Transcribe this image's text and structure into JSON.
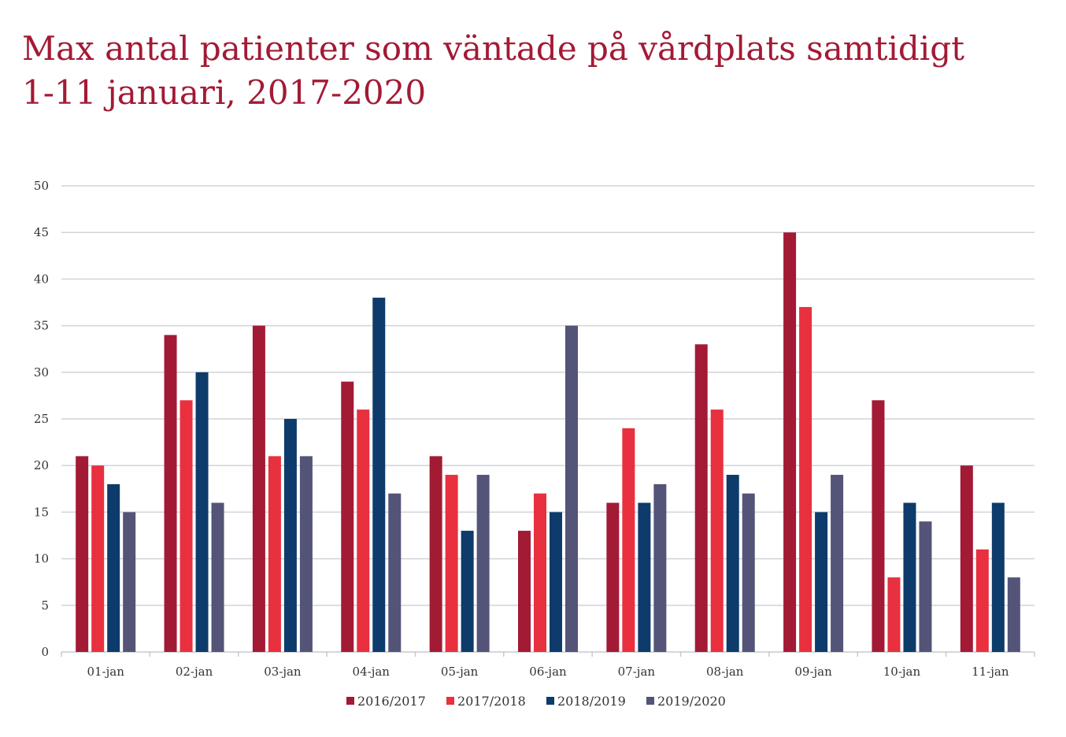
{
  "title": {
    "line1": "Max antal patienter som väntade på vårdplats samtidigt",
    "line2": "1-11 januari, 2017-2020"
  },
  "chart_data": {
    "type": "bar",
    "title": "Max antal patienter som väntade på vårdplats samtidigt 1-11 januari, 2017-2020",
    "xlabel": "",
    "ylabel": "",
    "ylim": [
      0,
      50
    ],
    "yticks": [
      0,
      5,
      10,
      15,
      20,
      25,
      30,
      35,
      40,
      45,
      50
    ],
    "grid": true,
    "legend_position": "bottom",
    "categories": [
      "01-jan",
      "02-jan",
      "03-jan",
      "04-jan",
      "05-jan",
      "06-jan",
      "07-jan",
      "08-jan",
      "09-jan",
      "10-jan",
      "11-jan"
    ],
    "series": [
      {
        "name": "2016/2017",
        "color": "#a31a35",
        "values": [
          21,
          34,
          35,
          29,
          21,
          13,
          16,
          33,
          45,
          27,
          20
        ]
      },
      {
        "name": "2017/2018",
        "color": "#e8303f",
        "values": [
          20,
          27,
          21,
          26,
          19,
          17,
          24,
          26,
          37,
          8,
          11
        ]
      },
      {
        "name": "2018/2019",
        "color": "#0d3b6b",
        "values": [
          18,
          30,
          25,
          38,
          13,
          15,
          16,
          19,
          15,
          16,
          16
        ]
      },
      {
        "name": "2019/2020",
        "color": "#545478",
        "values": [
          15,
          16,
          21,
          17,
          19,
          35,
          18,
          17,
          19,
          14,
          8
        ]
      }
    ]
  }
}
